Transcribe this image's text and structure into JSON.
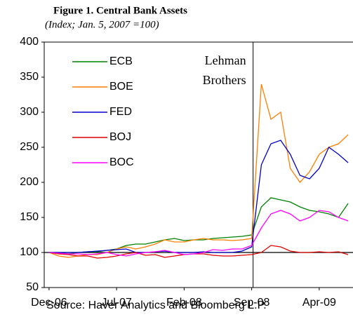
{
  "chart_data": {
    "type": "line",
    "title": "Figure 1. Central Bank Assets",
    "subtitle": "(Index; Jan. 5, 2007 =100)",
    "source": "Source: Haver Analytics and Bloomberg L.P.",
    "annotation": {
      "lines": [
        "Lehman",
        "Brothers"
      ],
      "x": "Sep-08"
    },
    "reference_y": 100,
    "x": [
      "Dec-06",
      null,
      null,
      null,
      null,
      null,
      null,
      "Jul-07",
      null,
      null,
      null,
      null,
      null,
      null,
      "Feb-08",
      null,
      null,
      null,
      null,
      null,
      null,
      "Sep-08",
      null,
      null,
      null,
      null,
      null,
      null,
      "Apr-09",
      null,
      null,
      null
    ],
    "ylim": [
      50,
      400
    ],
    "yticks": [
      50,
      100,
      150,
      200,
      250,
      300,
      350,
      400
    ],
    "legend": "upper left",
    "series": [
      {
        "name": "ECB",
        "color": "#008000",
        "values": [
          100,
          100,
          98,
          100,
          101,
          101,
          103,
          105,
          110,
          112,
          112,
          115,
          118,
          120,
          117,
          118,
          118,
          120,
          121,
          122,
          123,
          125,
          165,
          178,
          175,
          172,
          165,
          160,
          158,
          155,
          150,
          170
        ]
      },
      {
        "name": "BOE",
        "color": "#ff7f00",
        "values": [
          100,
          95,
          93,
          95,
          97,
          97,
          100,
          105,
          108,
          105,
          108,
          112,
          118,
          115,
          115,
          118,
          120,
          118,
          118,
          117,
          118,
          120,
          340,
          290,
          300,
          220,
          200,
          215,
          240,
          250,
          255,
          268
        ]
      },
      {
        "name": "FED",
        "color": "#0000cc",
        "values": [
          100,
          100,
          100,
          100,
          101,
          102,
          103,
          104,
          105,
          100,
          100,
          101,
          102,
          100,
          100,
          100,
          101,
          100,
          100,
          100,
          102,
          108,
          225,
          255,
          260,
          240,
          210,
          205,
          220,
          250,
          240,
          228
        ]
      },
      {
        "name": "BOJ",
        "color": "#e00000",
        "values": [
          100,
          98,
          97,
          95,
          95,
          92,
          93,
          95,
          98,
          100,
          96,
          97,
          93,
          95,
          97,
          98,
          98,
          96,
          95,
          95,
          96,
          97,
          100,
          110,
          108,
          102,
          100,
          100,
          101,
          100,
          101,
          97
        ]
      },
      {
        "name": "BOC",
        "color": "#ff00ff",
        "values": [
          100,
          99,
          98,
          98,
          97,
          98,
          100,
          97,
          95,
          98,
          100,
          101,
          103,
          100,
          97,
          98,
          100,
          104,
          103,
          105,
          105,
          110,
          135,
          155,
          160,
          155,
          145,
          150,
          160,
          158,
          150,
          145
        ]
      }
    ]
  }
}
